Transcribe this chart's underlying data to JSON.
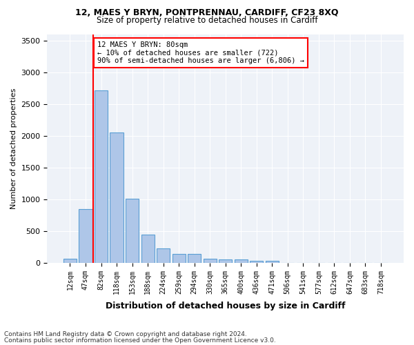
{
  "title_line1": "12, MAES Y BRYN, PONTPRENNAU, CARDIFF, CF23 8XQ",
  "title_line2": "Size of property relative to detached houses in Cardiff",
  "xlabel": "Distribution of detached houses by size in Cardiff",
  "ylabel": "Number of detached properties",
  "categories": [
    "12sqm",
    "47sqm",
    "82sqm",
    "118sqm",
    "153sqm",
    "188sqm",
    "224sqm",
    "259sqm",
    "294sqm",
    "330sqm",
    "365sqm",
    "400sqm",
    "436sqm",
    "471sqm",
    "506sqm",
    "541sqm",
    "577sqm",
    "612sqm",
    "647sqm",
    "683sqm",
    "718sqm"
  ],
  "values": [
    60,
    850,
    2720,
    2050,
    1010,
    450,
    230,
    145,
    145,
    65,
    55,
    55,
    35,
    30,
    0,
    0,
    0,
    0,
    0,
    0,
    0
  ],
  "bar_color": "#aec6e8",
  "bar_edgecolor": "#5a9fd4",
  "vline_x": 1.5,
  "vline_color": "red",
  "annotation_text": "12 MAES Y BRYN: 80sqm\n← 10% of detached houses are smaller (722)\n90% of semi-detached houses are larger (6,806) →",
  "annotation_box_color": "white",
  "annotation_box_edgecolor": "red",
  "ylim": [
    0,
    3600
  ],
  "yticks": [
    0,
    500,
    1000,
    1500,
    2000,
    2500,
    3000,
    3500
  ],
  "background_color": "#eef2f8",
  "footer_line1": "Contains HM Land Registry data © Crown copyright and database right 2024.",
  "footer_line2": "Contains public sector information licensed under the Open Government Licence v3.0."
}
